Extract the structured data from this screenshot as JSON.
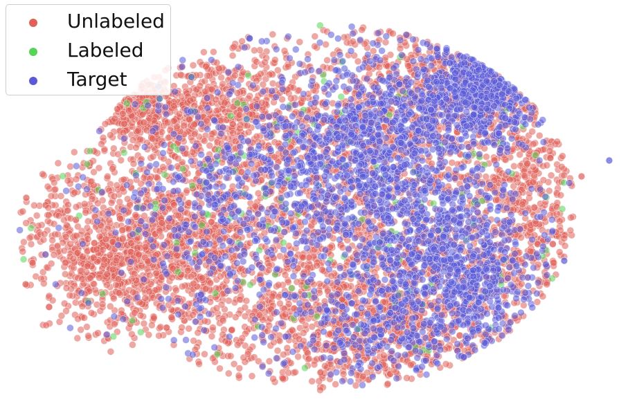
{
  "chart_data": {
    "type": "scatter",
    "title": "",
    "xlabel": "",
    "ylabel": "",
    "axes_visible": false,
    "grid": false,
    "legend_position": "top-left",
    "series": [
      {
        "name": "Unlabeled",
        "color": "#e0605a",
        "opacity": 0.55,
        "clusters": [
          {
            "cx": 440,
            "cy": 305,
            "sx": 210,
            "sy": 140,
            "n": 2100
          },
          {
            "cx": 230,
            "cy": 360,
            "sx": 70,
            "sy": 60,
            "n": 700
          },
          {
            "cx": 150,
            "cy": 380,
            "sx": 35,
            "sy": 40,
            "n": 260
          },
          {
            "cx": 300,
            "cy": 160,
            "sx": 70,
            "sy": 40,
            "n": 500
          },
          {
            "cx": 560,
            "cy": 470,
            "sx": 110,
            "sy": 55,
            "n": 700
          },
          {
            "cx": 650,
            "cy": 120,
            "sx": 100,
            "sy": 55,
            "n": 450
          },
          {
            "cx": 760,
            "cy": 300,
            "sx": 40,
            "sy": 90,
            "n": 350
          },
          {
            "cx": 80,
            "cy": 300,
            "sx": 40,
            "sy": 60,
            "n": 80
          },
          {
            "cx": 185,
            "cy": 165,
            "sx": 30,
            "sy": 20,
            "n": 130
          }
        ]
      },
      {
        "name": "Labeled",
        "color": "#55d455",
        "opacity": 0.55,
        "clusters": [
          {
            "cx": 460,
            "cy": 300,
            "sx": 190,
            "sy": 120,
            "n": 160
          }
        ]
      },
      {
        "name": "Target",
        "color": "#5a5ad8",
        "opacity": 0.55,
        "clusters": [
          {
            "cx": 695,
            "cy": 125,
            "sx": 45,
            "sy": 40,
            "n": 550
          },
          {
            "cx": 480,
            "cy": 240,
            "sx": 90,
            "sy": 60,
            "n": 550
          },
          {
            "cx": 630,
            "cy": 350,
            "sx": 65,
            "sy": 55,
            "n": 550
          },
          {
            "cx": 560,
            "cy": 180,
            "sx": 55,
            "sy": 55,
            "n": 350
          },
          {
            "cx": 580,
            "cy": 470,
            "sx": 80,
            "sy": 40,
            "n": 300
          },
          {
            "cx": 700,
            "cy": 420,
            "sx": 40,
            "sy": 40,
            "n": 200
          },
          {
            "cx": 440,
            "cy": 300,
            "sx": 190,
            "sy": 130,
            "n": 500
          },
          {
            "cx": 300,
            "cy": 300,
            "sx": 60,
            "sy": 60,
            "n": 140
          }
        ]
      }
    ]
  },
  "legend": {
    "items": [
      {
        "label": "Unlabeled",
        "color": "#e0605a"
      },
      {
        "label": "Labeled",
        "color": "#55d455"
      },
      {
        "label": "Target",
        "color": "#5a5ad8"
      }
    ]
  }
}
